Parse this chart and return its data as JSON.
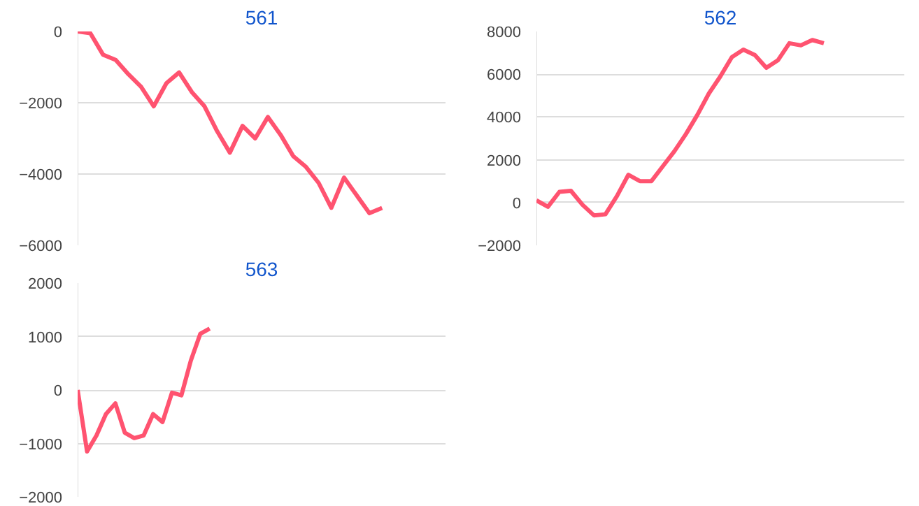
{
  "chart_data": [
    {
      "type": "line",
      "title": "561",
      "categories": [
        null,
        null,
        null,
        null,
        null,
        null,
        null,
        null,
        null,
        null,
        null,
        null,
        null,
        null,
        null,
        null,
        null,
        null,
        null,
        null,
        null,
        null,
        null,
        null,
        null,
        null,
        null,
        null,
        null,
        null
      ],
      "series": [
        {
          "color": "#ff5370",
          "values": [
            0,
            -50,
            -650,
            -800,
            -1200,
            -1550,
            -2100,
            -1450,
            -1150,
            -1700,
            -2100,
            -2800,
            -3400,
            -2650,
            -3000,
            -2400,
            -2900,
            -3500,
            -3800,
            -4250,
            -4950,
            -4100,
            -4600,
            -5100,
            -4950,
            null,
            null,
            null,
            null,
            null
          ]
        }
      ],
      "ylim": [
        -6000,
        0
      ],
      "yticks": [
        -6000,
        -4000,
        -2000,
        0
      ],
      "grid": "y",
      "tick_labels": "y"
    },
    {
      "type": "line",
      "title": "562",
      "categories": [
        null,
        null,
        null,
        null,
        null,
        null,
        null,
        null,
        null,
        null,
        null,
        null,
        null,
        null,
        null,
        null,
        null,
        null,
        null,
        null,
        null,
        null,
        null,
        null,
        null,
        null,
        null,
        null,
        null,
        null,
        null,
        null,
        null
      ],
      "series": [
        {
          "color": "#ff5370",
          "values": [
            100,
            -200,
            500,
            550,
            -100,
            -600,
            -550,
            300,
            1300,
            1000,
            1000,
            1700,
            2400,
            3200,
            4100,
            5100,
            5900,
            6800,
            7150,
            6900,
            6300,
            6650,
            7450,
            7350,
            7600,
            7450,
            null,
            null,
            null,
            null,
            null,
            null,
            null
          ]
        }
      ],
      "ylim": [
        -2000,
        8000
      ],
      "yticks": [
        -2000,
        0,
        2000,
        4000,
        6000,
        8000
      ],
      "grid": "y",
      "tick_labels": "y"
    },
    {
      "type": "line",
      "title": "563",
      "categories": [
        null,
        null,
        null,
        null,
        null,
        null,
        null,
        null,
        null,
        null,
        null,
        null,
        null,
        null,
        null,
        null,
        null,
        null,
        null,
        null,
        null,
        null,
        null,
        null,
        null,
        null,
        null,
        null,
        null,
        null,
        null,
        null,
        null,
        null,
        null,
        null,
        null,
        null,
        null,
        null
      ],
      "series": [
        {
          "color": "#ff5370",
          "values": [
            0,
            -1150,
            -850,
            -450,
            -250,
            -800,
            -900,
            -850,
            -450,
            -600,
            -50,
            -100,
            550,
            1050,
            1150,
            null,
            null,
            null,
            null,
            null,
            null,
            null,
            null,
            null,
            null,
            null,
            null,
            null,
            null,
            null,
            null,
            null,
            null,
            null,
            null,
            null,
            null,
            null,
            null,
            null
          ]
        }
      ],
      "ylim": [
        -2000,
        2000
      ],
      "yticks": [
        -2000,
        -1000,
        0,
        1000,
        2000
      ],
      "grid": "y",
      "tick_labels": "y"
    }
  ]
}
